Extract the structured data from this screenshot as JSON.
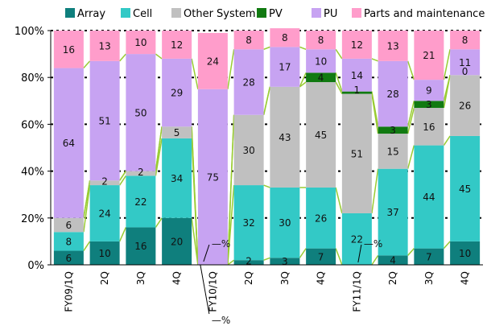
{
  "chart_data": {
    "type": "bar",
    "stacked": true,
    "normalized": true,
    "categories": [
      "FY09/1Q",
      "2Q",
      "3Q",
      "4Q",
      "FY10/1Q",
      "2Q",
      "3Q",
      "4Q",
      "FY11/1Q",
      "2Q",
      "3Q",
      "4Q"
    ],
    "series": [
      {
        "name": "Array",
        "color": "#0f7f7d",
        "values": [
          6,
          10,
          16,
          20,
          0,
          2,
          3,
          7,
          0,
          4,
          7,
          10
        ]
      },
      {
        "name": "Cell",
        "color": "#33c9c6",
        "values": [
          8,
          24,
          22,
          34,
          0,
          32,
          30,
          26,
          22,
          37,
          44,
          45
        ]
      },
      {
        "name": "Other System",
        "color": "#c0c0c0",
        "values": [
          6,
          2,
          2,
          5,
          0,
          30,
          43,
          45,
          51,
          15,
          16,
          26
        ]
      },
      {
        "name": "PV",
        "color": "#117a11",
        "values": [
          0,
          0,
          0,
          0,
          0,
          0,
          0,
          4,
          1,
          3,
          3,
          0
        ]
      },
      {
        "name": "PU",
        "color": "#c7a3f2",
        "values": [
          64,
          51,
          50,
          29,
          75,
          28,
          17,
          10,
          14,
          28,
          9,
          11
        ]
      },
      {
        "name": "Parts and maintenance",
        "color": "#ff9dcb",
        "values": [
          16,
          13,
          10,
          12,
          24,
          8,
          8,
          8,
          12,
          13,
          21,
          8
        ]
      }
    ],
    "labels": [
      [
        "6",
        "8",
        "6",
        "",
        "64",
        "16"
      ],
      [
        "10",
        "24",
        "2",
        "",
        "51",
        "13"
      ],
      [
        "16",
        "22",
        "2",
        "",
        "50",
        "10"
      ],
      [
        "20",
        "34",
        "5",
        "",
        "29",
        "12"
      ],
      [
        "",
        "",
        "",
        "",
        "75",
        "24"
      ],
      [
        "2",
        "32",
        "30",
        "",
        "28",
        "8"
      ],
      [
        "3",
        "30",
        "43",
        "",
        "17",
        "8"
      ],
      [
        "7",
        "26",
        "45",
        "4",
        "10",
        "8"
      ],
      [
        "",
        "22",
        "51",
        "1",
        "14",
        "12"
      ],
      [
        "4",
        "37",
        "15",
        "3",
        "28",
        "13"
      ],
      [
        "7",
        "44",
        "16",
        "3",
        "9",
        "21"
      ],
      [
        "10",
        "45",
        "26",
        "0",
        "11",
        "8"
      ]
    ],
    "callouts": [
      "—%",
      "—%",
      "—%"
    ],
    "yticks": [
      "0%",
      "20%",
      "40%",
      "60%",
      "80%",
      "100%"
    ],
    "ylim": [
      0,
      100
    ],
    "legend_position": "top",
    "connector_color": "#99cc33"
  }
}
